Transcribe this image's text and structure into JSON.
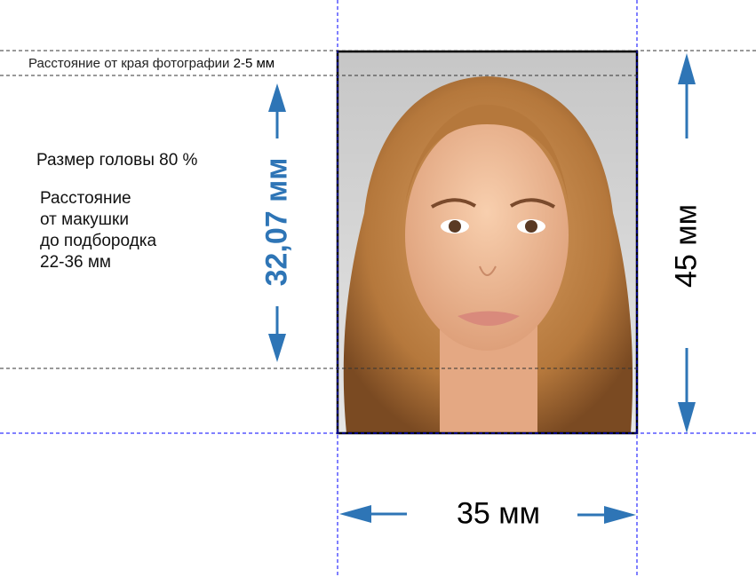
{
  "labels": {
    "edge_distance": "Расстояние от края фотографии",
    "edge_distance_value": "2-5 мм",
    "head_size": "Размер головы 80 %",
    "crown_chin_lines": [
      "Расстояние",
      "от макушки",
      "до подбородка",
      "22-36 мм"
    ],
    "head_height": "32,07 мм",
    "photo_height": "45 мм",
    "photo_width": "35 мм"
  },
  "colors": {
    "arrow": "#2e75b6",
    "guide": "#0000ff",
    "photo_bg": "#c8c8c8",
    "hair": "#b5783c",
    "skin": "#f0b894"
  }
}
